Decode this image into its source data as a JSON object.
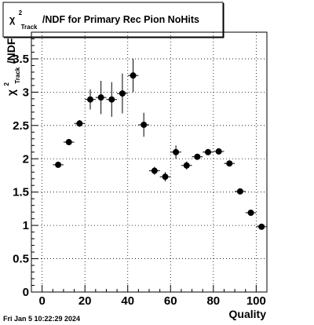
{
  "chart_data": {
    "type": "scatter",
    "title": {
      "chi": "χ",
      "sup": "2",
      "sub": "Track",
      "rest": "/NDF for Primary Rec Pion NoHits"
    },
    "ylabel": {
      "chi": "χ",
      "sup": "2",
      "sub": "Track",
      "rest": "/NDF"
    },
    "xlabel": "Quality",
    "xlim": [
      -5,
      105
    ],
    "ylim": [
      0,
      3.9
    ],
    "xticks": [
      0,
      20,
      40,
      60,
      80,
      100
    ],
    "yticks": [
      0,
      0.5,
      1,
      1.5,
      2,
      2.5,
      3,
      3.5
    ],
    "x_tick_labels": [
      "0",
      "20",
      "40",
      "60",
      "80",
      "100"
    ],
    "y_tick_labels": [
      "0",
      "0.5",
      "1",
      "1.5",
      "2",
      "2.5",
      "3",
      "3.5"
    ],
    "grid": true,
    "grid_style": "dotted",
    "x_bin_halfwidth": 2.5,
    "points": [
      {
        "x": 7.5,
        "y": 1.91,
        "err": 0.03
      },
      {
        "x": 12.5,
        "y": 2.25,
        "err": 0.03
      },
      {
        "x": 17.5,
        "y": 2.53,
        "err": 0.05
      },
      {
        "x": 22.5,
        "y": 2.89,
        "err": 0.15
      },
      {
        "x": 27.5,
        "y": 2.92,
        "err": 0.25
      },
      {
        "x": 32.5,
        "y": 2.89,
        "err": 0.26
      },
      {
        "x": 37.5,
        "y": 2.98,
        "err": 0.3
      },
      {
        "x": 42.5,
        "y": 3.25,
        "err": 0.25
      },
      {
        "x": 47.5,
        "y": 2.51,
        "err": 0.18
      },
      {
        "x": 52.5,
        "y": 1.82,
        "err": 0.06
      },
      {
        "x": 57.5,
        "y": 1.73,
        "err": 0.07
      },
      {
        "x": 62.5,
        "y": 2.1,
        "err": 0.1
      },
      {
        "x": 67.5,
        "y": 1.9,
        "err": 0.06
      },
      {
        "x": 72.5,
        "y": 2.03,
        "err": 0.04
      },
      {
        "x": 77.5,
        "y": 2.1,
        "err": 0.03
      },
      {
        "x": 82.5,
        "y": 2.11,
        "err": 0.03
      },
      {
        "x": 87.5,
        "y": 1.93,
        "err": 0.02
      },
      {
        "x": 92.5,
        "y": 1.51,
        "err": 0.02
      },
      {
        "x": 97.5,
        "y": 1.19,
        "err": 0.02
      },
      {
        "x": 102.5,
        "y": 0.98,
        "err": 0.01
      }
    ]
  },
  "footer": "Fri Jan  5 10:22:29 2024"
}
